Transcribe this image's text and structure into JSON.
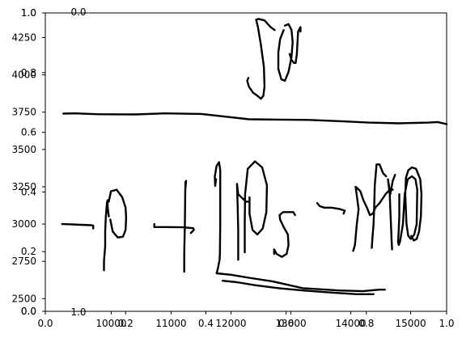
{
  "chart_data": {
    "type": "line",
    "title": "",
    "xlabel": "",
    "ylabel": "",
    "grid": false,
    "overlay_axes_note_free": true,
    "outer_axes": {
      "xlim": [
        0,
        1
      ],
      "ylim": [
        0,
        1
      ],
      "x_ticks": [
        "0.0",
        "0.2",
        "0.4",
        "0.6",
        "0.8",
        "1.0"
      ],
      "y_ticks": [
        "0.0",
        "0.2",
        "0.4",
        "0.6",
        "0.8",
        "1.0"
      ]
    },
    "data_axes": {
      "xlim": [
        8900,
        15600
      ],
      "ylim": [
        2415,
        4415
      ],
      "x_ticks": [
        "10000",
        "11000",
        "12000",
        "13000",
        "14000",
        "15000"
      ],
      "y_ticks": [
        "2500",
        "2750",
        "3000",
        "3250",
        "3500",
        "3750",
        "4000",
        "4250"
      ]
    },
    "stray_labels": [
      "0.0",
      "1.0",
      "1.0",
      "0.0"
    ],
    "series": [
      {
        "points": [
          [
            9180,
            3000
          ],
          [
            9330,
            2998
          ],
          [
            9490,
            2995
          ],
          [
            9660,
            2992
          ],
          [
            9700,
            2990
          ],
          [
            9700,
            2970
          ]
        ]
      },
      {
        "points": [
          [
            9880,
            2690
          ],
          [
            9880,
            2750
          ],
          [
            9900,
            2850
          ],
          [
            9900,
            2950
          ],
          [
            9910,
            3050
          ],
          [
            9930,
            3150
          ],
          [
            9960,
            3050
          ],
          [
            9940,
            3100
          ],
          [
            9940,
            3160
          ],
          [
            9960,
            3150
          ],
          [
            9995,
            3220
          ],
          [
            10090,
            3230
          ],
          [
            10185,
            3180
          ],
          [
            10240,
            3110
          ],
          [
            10250,
            3040
          ],
          [
            10240,
            2960
          ],
          [
            10195,
            2915
          ],
          [
            10110,
            2910
          ],
          [
            10025,
            2950
          ],
          [
            9985,
            3030
          ]
        ]
      },
      {
        "points": [
          [
            10720,
            3000
          ],
          [
            10720,
            2980
          ],
          [
            10900,
            2980
          ],
          [
            11200,
            2978
          ],
          [
            11370,
            2972
          ],
          [
            11380,
            2960
          ],
          [
            11330,
            2940
          ]
        ]
      },
      {
        "points": [
          [
            11220,
            2680
          ],
          [
            11220,
            2800
          ],
          [
            11230,
            3000
          ],
          [
            11235,
            3200
          ],
          [
            11240,
            3280
          ],
          [
            11250,
            3290
          ],
          [
            11240,
            3240
          ]
        ]
      },
      {
        "points": [
          [
            11750,
            3300
          ],
          [
            11735,
            3255
          ],
          [
            11730,
            3320
          ],
          [
            11760,
            3390
          ],
          [
            11800,
            3415
          ],
          [
            11820,
            3360
          ],
          [
            11820,
            3200
          ],
          [
            11820,
            3000
          ],
          [
            11815,
            2800
          ],
          [
            11810,
            2760
          ],
          [
            11780,
            2700
          ],
          [
            11760,
            2670
          ],
          [
            12000,
            2660
          ],
          [
            12300,
            2640
          ],
          [
            12700,
            2615
          ],
          [
            13200,
            2570
          ],
          [
            13800,
            2555
          ],
          [
            14200,
            2550
          ],
          [
            14480,
            2560
          ],
          [
            14570,
            2560
          ]
        ]
      },
      {
        "points": [
          [
            11860,
            2620
          ],
          [
            12100,
            2610
          ],
          [
            12400,
            2590
          ],
          [
            12800,
            2570
          ],
          [
            13200,
            2555
          ],
          [
            13700,
            2540
          ],
          [
            14100,
            2530
          ],
          [
            14380,
            2530
          ]
        ]
      },
      {
        "points": [
          [
            12120,
            2760
          ],
          [
            12120,
            2960
          ],
          [
            12110,
            3150
          ],
          [
            12100,
            3270
          ],
          [
            12120,
            3200
          ],
          [
            12250,
            3150
          ],
          [
            12285,
            3150
          ]
        ]
      },
      {
        "points": [
          [
            12230,
            2810
          ],
          [
            12230,
            3000
          ],
          [
            12235,
            3200
          ],
          [
            12280,
            3370
          ],
          [
            12400,
            3420
          ],
          [
            12520,
            3380
          ],
          [
            12600,
            3260
          ],
          [
            12590,
            3080
          ],
          [
            12530,
            2970
          ],
          [
            12440,
            2930
          ],
          [
            12360,
            2960
          ],
          [
            12310,
            3070
          ],
          [
            12310,
            3180
          ]
        ]
      },
      {
        "points": [
          [
            12720,
            2800
          ],
          [
            12720,
            2830
          ],
          [
            12760,
            2800
          ],
          [
            12850,
            2780
          ],
          [
            12930,
            2800
          ],
          [
            12960,
            2860
          ],
          [
            12950,
            2930
          ],
          [
            12880,
            2980
          ],
          [
            12820,
            3030
          ],
          [
            12810,
            3060
          ],
          [
            12870,
            3080
          ],
          [
            12960,
            3080
          ],
          [
            13040,
            3080
          ],
          [
            13070,
            3060
          ]
        ]
      },
      {
        "points": [
          [
            13440,
            3140
          ],
          [
            13480,
            3120
          ],
          [
            13560,
            3110
          ],
          [
            13680,
            3110
          ],
          [
            13820,
            3100
          ],
          [
            13900,
            3090
          ],
          [
            13880,
            3070
          ]
        ]
      },
      {
        "points": [
          [
            14040,
            2820
          ],
          [
            14070,
            2860
          ],
          [
            14100,
            3000
          ],
          [
            14130,
            3100
          ],
          [
            14080,
            3250
          ],
          [
            14160,
            3220
          ],
          [
            14210,
            3160
          ],
          [
            14270,
            3110
          ],
          [
            14320,
            3060
          ],
          [
            14370,
            3070
          ],
          [
            14410,
            3110
          ],
          [
            14480,
            3140
          ],
          [
            14580,
            3200
          ],
          [
            14650,
            3230
          ],
          [
            14700,
            3230
          ]
        ]
      },
      {
        "points": [
          [
            14350,
            2840
          ],
          [
            14360,
            2900
          ],
          [
            14380,
            3000
          ],
          [
            14390,
            3100
          ],
          [
            14400,
            3260
          ],
          [
            14430,
            3400
          ],
          [
            14480,
            3400
          ],
          [
            14540,
            3340
          ],
          [
            14590,
            3320
          ]
        ]
      },
      {
        "points": [
          [
            14690,
            2830
          ],
          [
            14680,
            2900
          ],
          [
            14670,
            3000
          ],
          [
            14660,
            3100
          ],
          [
            14650,
            3200
          ],
          [
            14620,
            3300
          ],
          [
            14660,
            3200
          ],
          [
            14700,
            3290
          ],
          [
            14740,
            3330
          ]
        ]
      },
      {
        "points": [
          [
            14810,
            3200
          ],
          [
            14810,
            3050
          ],
          [
            14800,
            2960
          ],
          [
            14790,
            2880
          ],
          [
            14800,
            2860
          ],
          [
            14820,
            2880
          ],
          [
            14870,
            3000
          ],
          [
            14900,
            3200
          ],
          [
            14950,
            3300
          ],
          [
            15020,
            3320
          ],
          [
            15080,
            3300
          ],
          [
            15110,
            3230
          ],
          [
            15100,
            3000
          ],
          [
            15060,
            2930
          ],
          [
            15000,
            2900
          ],
          [
            14960,
            2920
          ],
          [
            14930,
            3000
          ],
          [
            14910,
            3200
          ],
          [
            14920,
            3310
          ],
          [
            14960,
            3360
          ],
          [
            15020,
            3380
          ],
          [
            15090,
            3370
          ],
          [
            15160,
            3300
          ],
          [
            15180,
            3200
          ],
          [
            15170,
            3050
          ],
          [
            15140,
            2950
          ],
          [
            15100,
            2900
          ],
          [
            15050,
            2890
          ],
          [
            15010,
            2920
          ]
        ]
      },
      {
        "points": [
          [
            9200,
            3740
          ],
          [
            9400,
            3742
          ],
          [
            9800,
            3736
          ],
          [
            10400,
            3735
          ],
          [
            10900,
            3742
          ],
          [
            11500,
            3738
          ],
          [
            11900,
            3720
          ],
          [
            12300,
            3702
          ],
          [
            12800,
            3700
          ],
          [
            13300,
            3698
          ],
          [
            13800,
            3690
          ],
          [
            14300,
            3680
          ],
          [
            14800,
            3675
          ],
          [
            15300,
            3680
          ],
          [
            15450,
            3684
          ],
          [
            15600,
            3670
          ]
        ]
      },
      {
        "points": [
          [
            12290,
            3980
          ],
          [
            12270,
            3960
          ],
          [
            12300,
            3920
          ],
          [
            12370,
            3880
          ],
          [
            12440,
            3860
          ],
          [
            12500,
            3840
          ],
          [
            12540,
            3860
          ],
          [
            12560,
            3920
          ],
          [
            12550,
            4050
          ],
          [
            12500,
            4200
          ],
          [
            12450,
            4320
          ],
          [
            12420,
            4370
          ],
          [
            12460,
            4375
          ],
          [
            12560,
            4365
          ],
          [
            12660,
            4320
          ],
          [
            12730,
            4300
          ]
        ]
      },
      {
        "points": [
          [
            12880,
            4300
          ],
          [
            12820,
            4240
          ],
          [
            12790,
            4150
          ],
          [
            12790,
            4040
          ],
          [
            12840,
            3970
          ],
          [
            12900,
            3960
          ],
          [
            12960,
            4020
          ],
          [
            13010,
            4120
          ],
          [
            13030,
            4220
          ],
          [
            13010,
            4300
          ],
          [
            12960,
            4340
          ],
          [
            12900,
            4330
          ]
        ]
      },
      {
        "points": [
          [
            12980,
            4140
          ],
          [
            13010,
            4100
          ],
          [
            13050,
            4080
          ],
          [
            13080,
            4080
          ],
          [
            13100,
            4140
          ],
          [
            13110,
            4220
          ],
          [
            13120,
            4290
          ],
          [
            13160,
            4320
          ],
          [
            13160,
            4290
          ]
        ]
      }
    ]
  }
}
